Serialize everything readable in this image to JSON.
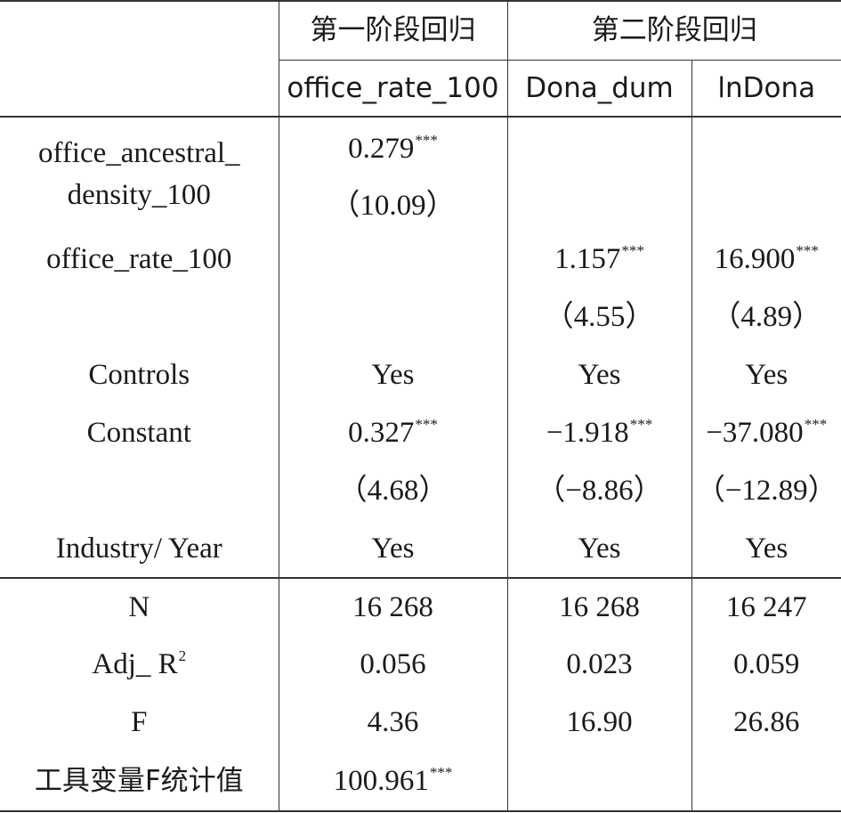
{
  "header": {
    "stage1": "第一阶段回归",
    "stage2": "第二阶段回归",
    "col1": "office_rate_100",
    "col2": "Dona_dum",
    "col3": "lnDona"
  },
  "rows": {
    "ancestral": {
      "label_line1": "office_ancestral_",
      "label_line2": "density_100",
      "c1_coef": "0.279",
      "c1_stars": "***",
      "c1_t": "（10.09）"
    },
    "office_rate": {
      "label": "office_rate_100",
      "c2_coef": "1.157",
      "c2_stars": "***",
      "c3_coef": "16.900",
      "c3_stars": "***",
      "c2_t": "（4.55）",
      "c3_t": "（4.89）"
    },
    "controls": {
      "label": "Controls",
      "c1": "Yes",
      "c2": "Yes",
      "c3": "Yes"
    },
    "constant": {
      "label": "Constant",
      "c1_coef": "0.327",
      "c1_stars": "***",
      "c2_coef": "−1.918",
      "c2_stars": "***",
      "c3_coef": "−37.080",
      "c3_stars": "***",
      "c1_t": "（4.68）",
      "c2_t": "（−8.86）",
      "c3_t": "（−12.89）"
    },
    "industry_year": {
      "label": "Industry/ Year",
      "c1": "Yes",
      "c2": "Yes",
      "c3": "Yes"
    },
    "n": {
      "label": "N",
      "c1": "16 268",
      "c2": "16 268",
      "c3": "16 247"
    },
    "adj_r2": {
      "label_main": "Adj_ R",
      "label_sup": "2",
      "c1": "0.056",
      "c2": "0.023",
      "c3": "0.059"
    },
    "f": {
      "label": "F",
      "c1": "4.36",
      "c2": "16.90",
      "c3": "26.86"
    },
    "iv_f": {
      "label": "工具变量F统计值",
      "c1_coef": "100.961",
      "c1_stars": "***"
    }
  }
}
